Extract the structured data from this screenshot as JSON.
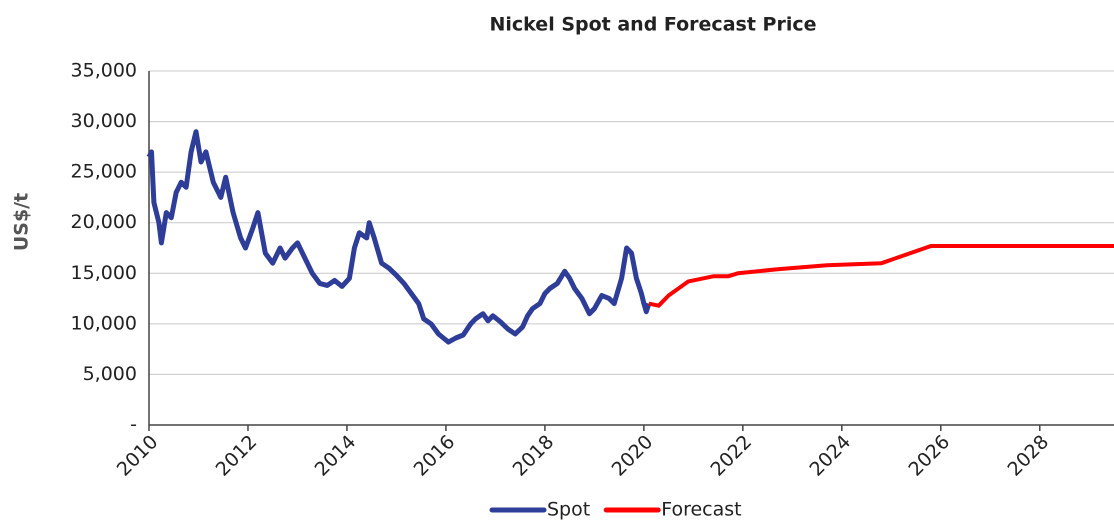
{
  "chart_data": {
    "type": "line",
    "title": "Nickel Spot and Forecast Price",
    "y_label": "US$/t",
    "xlim": [
      2010,
      2029.5
    ],
    "xticks": [
      2010,
      2012,
      2014,
      2016,
      2018,
      2020,
      2022,
      2024,
      2026,
      2028
    ],
    "ylim": [
      0,
      35000
    ],
    "yticks": [
      {
        "value": 0,
        "label": "-"
      },
      {
        "value": 5000,
        "label": "5,000"
      },
      {
        "value": 10000,
        "label": "10,000"
      },
      {
        "value": 15000,
        "label": "15,000"
      },
      {
        "value": 20000,
        "label": "20,000"
      },
      {
        "value": 25000,
        "label": "25,000"
      },
      {
        "value": 30000,
        "label": "30,000"
      },
      {
        "value": 35000,
        "label": "35,000"
      }
    ],
    "grid": true,
    "legend": "bottom",
    "series": [
      {
        "name": "Spot",
        "color": "#2e3d98",
        "x": [
          2010.0,
          2010.05,
          2010.1,
          2010.2,
          2010.25,
          2010.35,
          2010.45,
          2010.55,
          2010.65,
          2010.75,
          2010.85,
          2010.95,
          2011.05,
          2011.15,
          2011.3,
          2011.45,
          2011.55,
          2011.7,
          2011.85,
          2011.95,
          2012.1,
          2012.2,
          2012.35,
          2012.5,
          2012.65,
          2012.75,
          2012.9,
          2013.0,
          2013.15,
          2013.3,
          2013.45,
          2013.6,
          2013.75,
          2013.9,
          2014.05,
          2014.15,
          2014.25,
          2014.4,
          2014.45,
          2014.55,
          2014.7,
          2014.85,
          2015.0,
          2015.15,
          2015.3,
          2015.45,
          2015.55,
          2015.7,
          2015.85,
          2015.95,
          2016.05,
          2016.2,
          2016.35,
          2016.5,
          2016.6,
          2016.75,
          2016.85,
          2016.95,
          2017.1,
          2017.25,
          2017.4,
          2017.55,
          2017.65,
          2017.75,
          2017.9,
          2018.0,
          2018.1,
          2018.25,
          2018.4,
          2018.5,
          2018.6,
          2018.75,
          2018.9,
          2019.0,
          2019.15,
          2019.3,
          2019.4,
          2019.55,
          2019.65,
          2019.75,
          2019.85,
          2019.95,
          2020.0,
          2020.05,
          2020.1
        ],
        "values": [
          26500,
          27000,
          22000,
          20000,
          18000,
          21000,
          20500,
          23000,
          24000,
          23500,
          27000,
          29000,
          26000,
          27000,
          24000,
          22500,
          24500,
          21000,
          18500,
          17500,
          19500,
          21000,
          17000,
          16000,
          17500,
          16500,
          17500,
          18000,
          16500,
          15000,
          14000,
          13800,
          14300,
          13700,
          14500,
          17500,
          19000,
          18500,
          20000,
          18500,
          16000,
          15500,
          14800,
          14000,
          13000,
          12000,
          10500,
          10000,
          9000,
          8600,
          8200,
          8600,
          8900,
          10000,
          10500,
          11000,
          10300,
          10800,
          10200,
          9500,
          9000,
          9700,
          10800,
          11500,
          12000,
          13000,
          13500,
          14000,
          15200,
          14500,
          13500,
          12500,
          11000,
          11500,
          12800,
          12500,
          12000,
          14500,
          17500,
          17000,
          14500,
          13000,
          12000,
          11200,
          12000
        ]
      },
      {
        "name": "Forecast",
        "color": "#ff0000",
        "x": [
          2020.1,
          2020.3,
          2020.5,
          2020.9,
          2021.4,
          2021.7,
          2021.9,
          2022.7,
          2023.7,
          2024.8,
          2025.8,
          2029.5
        ],
        "values": [
          12000,
          11800,
          12800,
          14200,
          14700,
          14700,
          15000,
          15400,
          15800,
          16000,
          17700,
          17700
        ]
      }
    ]
  }
}
